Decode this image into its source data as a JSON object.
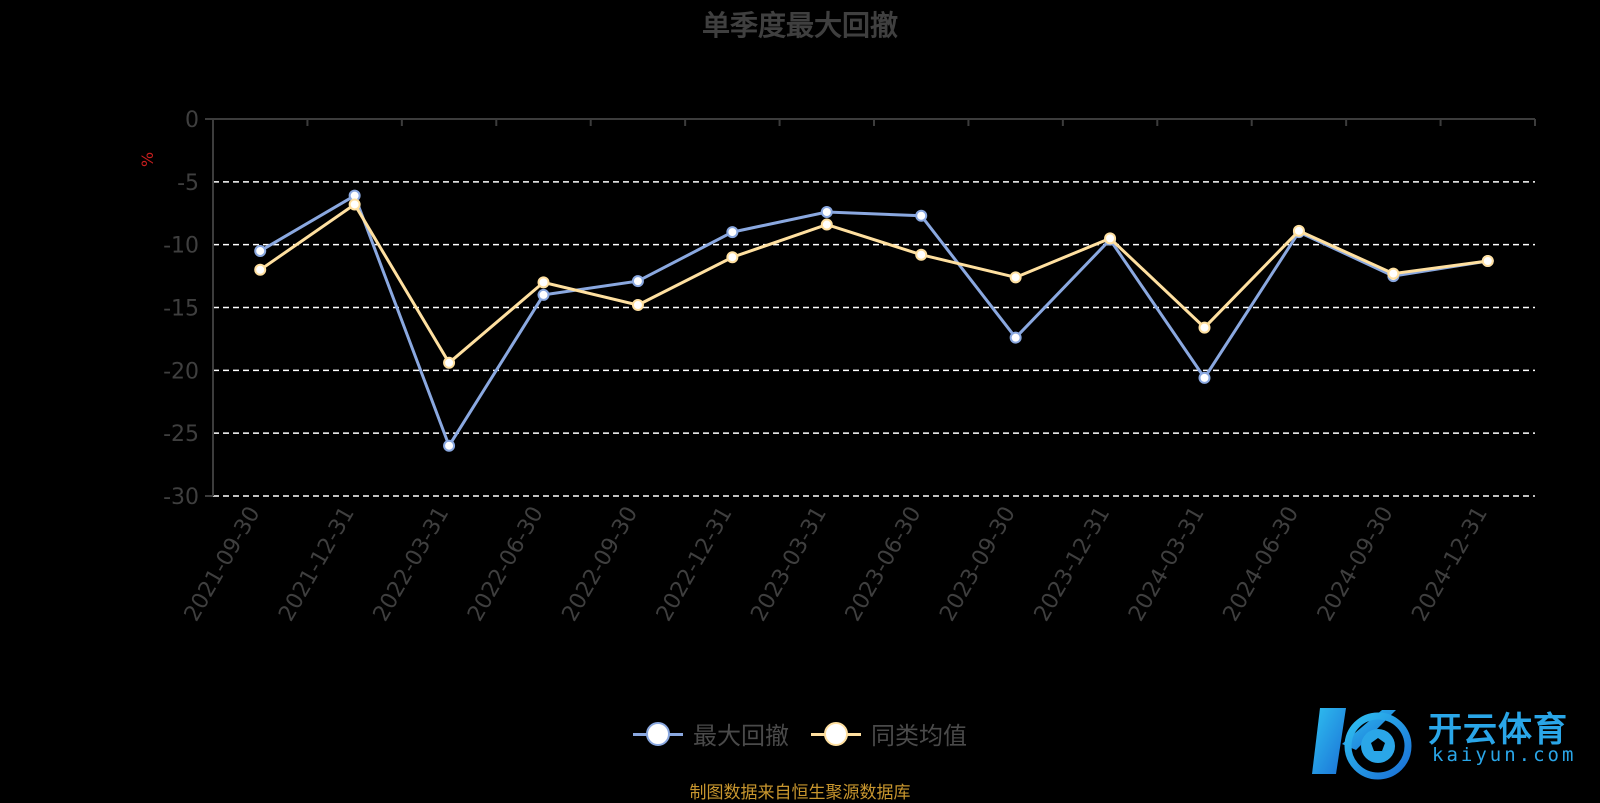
{
  "chart_data": {
    "type": "line",
    "title": "单季度最大回撤",
    "ylabel": "%",
    "ylim": [
      -30,
      0
    ],
    "yticks": [
      0,
      -5,
      -10,
      -15,
      -20,
      -25,
      -30
    ],
    "grid": true,
    "legend_position": "bottom-center",
    "categories": [
      "2021-09-30",
      "2021-12-31",
      "2022-03-31",
      "2022-06-30",
      "2022-09-30",
      "2022-12-31",
      "2023-03-31",
      "2023-06-30",
      "2023-09-30",
      "2023-12-31",
      "2024-03-31",
      "2024-06-30",
      "2024-09-30",
      "2024-12-31"
    ],
    "series": [
      {
        "name": "最大回撤",
        "color": "#8aa8e0",
        "values": [
          -10.5,
          -6.1,
          -26.0,
          -14.0,
          -12.9,
          -9.0,
          -7.4,
          -7.7,
          -17.4,
          -9.6,
          -20.6,
          -9.0,
          -12.5,
          -11.3
        ]
      },
      {
        "name": "同类均值",
        "color": "#ffe0a0",
        "values": [
          -12.0,
          -6.8,
          -19.4,
          -13.0,
          -14.8,
          -11.0,
          -8.4,
          -10.8,
          -12.6,
          -9.5,
          -16.6,
          -8.9,
          -12.3,
          -11.3
        ]
      }
    ]
  },
  "source": "制图数据来自恒生聚源数据库",
  "logo": {
    "cn": "开云体育",
    "en": "kaiyun.com"
  },
  "colors": {
    "axis": "#3c3c3c",
    "grid": "#ffffff",
    "tick_label": "#3f3f3f",
    "unit": "#c81e1e",
    "source": "#c8962e",
    "logo": "#2aa6e8"
  }
}
